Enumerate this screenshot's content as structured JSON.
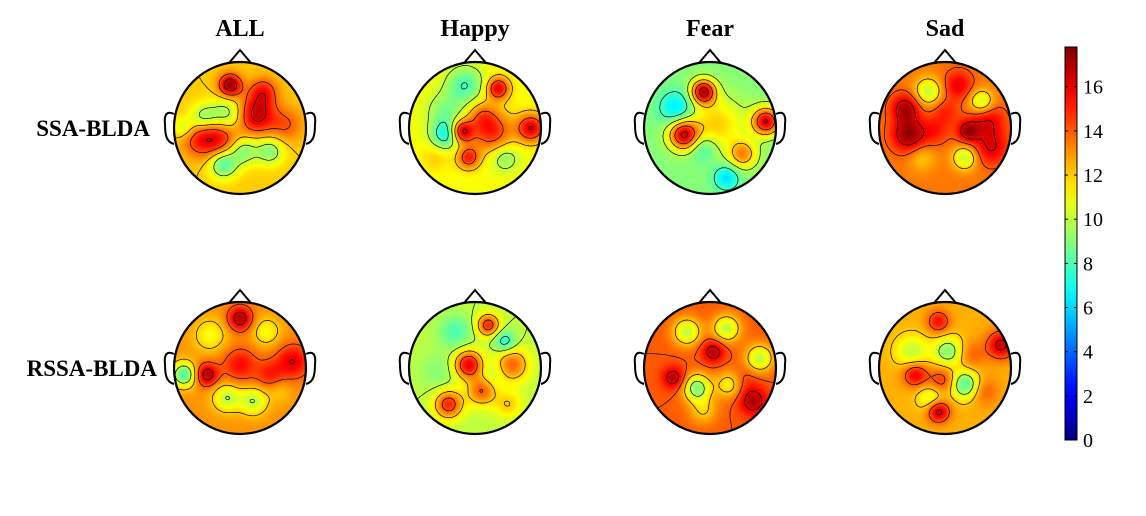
{
  "chart_data": {
    "type": "heatmap",
    "title": "",
    "columns": [
      "ALL",
      "Happy",
      "Fear",
      "Sad"
    ],
    "rows": [
      "SSA-BLDA",
      "RSSA-BLDA"
    ],
    "colorbar": {
      "min": 0,
      "max": 17.8,
      "ticks": [
        0,
        2,
        4,
        6,
        8,
        10,
        12,
        14,
        16
      ],
      "tick_labels": [
        "0",
        "2",
        "4",
        "6",
        "8",
        "10",
        "12",
        "14",
        "16"
      ],
      "colormap": "jet"
    },
    "topomaps": [
      {
        "row": "SSA-BLDA",
        "column": "ALL",
        "base": 12,
        "blobs": [
          {
            "cx": -0.15,
            "cy": -0.65,
            "v": 17.5,
            "r": 0.12
          },
          {
            "cx": 0.35,
            "cy": -0.55,
            "v": 15,
            "r": 0.15
          },
          {
            "cx": -0.55,
            "cy": -0.15,
            "v": 9,
            "r": 0.15
          },
          {
            "cx": -0.2,
            "cy": -0.2,
            "v": 9,
            "r": 0.18
          },
          {
            "cx": 0.25,
            "cy": -0.2,
            "v": 16.5,
            "r": 0.2
          },
          {
            "cx": -0.6,
            "cy": 0.15,
            "v": 15,
            "r": 0.2
          },
          {
            "cx": -0.3,
            "cy": 0.15,
            "v": 15,
            "r": 0.2
          },
          {
            "cx": 0.05,
            "cy": 0.35,
            "v": 9,
            "r": 0.15
          },
          {
            "cx": 0.45,
            "cy": 0.35,
            "v": 9,
            "r": 0.15
          },
          {
            "cx": -0.25,
            "cy": 0.55,
            "v": 8,
            "r": 0.15
          },
          {
            "cx": 0.7,
            "cy": -0.05,
            "v": 14,
            "r": 0.18
          },
          {
            "cx": -0.85,
            "cy": 0,
            "v": 10,
            "r": 0.12
          }
        ]
      },
      {
        "row": "SSA-BLDA",
        "column": "Happy",
        "base": 11,
        "blobs": [
          {
            "cx": -0.15,
            "cy": -0.65,
            "v": 8,
            "r": 0.2
          },
          {
            "cx": 0.35,
            "cy": -0.6,
            "v": 16,
            "r": 0.12
          },
          {
            "cx": -0.45,
            "cy": -0.25,
            "v": 9,
            "r": 0.2
          },
          {
            "cx": -0.45,
            "cy": 0.1,
            "v": 7,
            "r": 0.15
          },
          {
            "cx": -0.2,
            "cy": 0.05,
            "v": 16.5,
            "r": 0.12
          },
          {
            "cx": 0.25,
            "cy": 0.05,
            "v": 15,
            "r": 0.22
          },
          {
            "cx": 0.85,
            "cy": 0,
            "v": 16,
            "r": 0.15
          },
          {
            "cx": 0.1,
            "cy": -0.2,
            "v": 13,
            "r": 0.15
          },
          {
            "cx": -0.1,
            "cy": 0.45,
            "v": 15,
            "r": 0.12
          },
          {
            "cx": 0.45,
            "cy": 0.45,
            "v": 9,
            "r": 0.15
          },
          {
            "cx": -0.6,
            "cy": 0.45,
            "v": 12,
            "r": 0.15
          }
        ]
      },
      {
        "row": "SSA-BLDA",
        "column": "Fear",
        "base": 9,
        "blobs": [
          {
            "cx": -0.5,
            "cy": -0.3,
            "v": 6,
            "r": 0.18
          },
          {
            "cx": -0.1,
            "cy": -0.55,
            "v": 16.5,
            "r": 0.13
          },
          {
            "cx": 0.2,
            "cy": -0.65,
            "v": 9,
            "r": 0.15
          },
          {
            "cx": 0.85,
            "cy": -0.1,
            "v": 16,
            "r": 0.15
          },
          {
            "cx": -0.4,
            "cy": 0.1,
            "v": 16,
            "r": 0.16
          },
          {
            "cx": 0.1,
            "cy": -0.05,
            "v": 12,
            "r": 0.3
          },
          {
            "cx": 0.5,
            "cy": 0.4,
            "v": 13,
            "r": 0.15
          },
          {
            "cx": -0.1,
            "cy": 0.3,
            "v": 7,
            "r": 0.15
          },
          {
            "cx": -0.2,
            "cy": 0.6,
            "v": 9,
            "r": 0.15
          },
          {
            "cx": 0.25,
            "cy": 0.75,
            "v": 6,
            "r": 0.13
          }
        ]
      },
      {
        "row": "SSA-BLDA",
        "column": "Sad",
        "base": 13.5,
        "blobs": [
          {
            "cx": -0.6,
            "cy": -0.3,
            "v": 17,
            "r": 0.15
          },
          {
            "cx": -0.25,
            "cy": -0.55,
            "v": 10,
            "r": 0.15
          },
          {
            "cx": 0.2,
            "cy": -0.65,
            "v": 16,
            "r": 0.15
          },
          {
            "cx": 0.55,
            "cy": -0.4,
            "v": 10,
            "r": 0.13
          },
          {
            "cx": 0.65,
            "cy": -0.1,
            "v": 16,
            "r": 0.18
          },
          {
            "cx": -0.55,
            "cy": 0.1,
            "v": 17.5,
            "r": 0.18
          },
          {
            "cx": -0.15,
            "cy": 0.05,
            "v": 15,
            "r": 0.15
          },
          {
            "cx": 0.35,
            "cy": 0.05,
            "v": 17,
            "r": 0.12
          },
          {
            "cx": 0.3,
            "cy": 0.45,
            "v": 10,
            "r": 0.13
          },
          {
            "cx": -0.35,
            "cy": 0.45,
            "v": 12,
            "r": 0.15
          },
          {
            "cx": 0.7,
            "cy": 0.3,
            "v": 16,
            "r": 0.18
          },
          {
            "cx": 0,
            "cy": -0.25,
            "v": 15,
            "r": 0.15
          }
        ]
      },
      {
        "row": "RSSA-BLDA",
        "column": "ALL",
        "base": 13,
        "blobs": [
          {
            "cx": 0,
            "cy": -0.75,
            "v": 17,
            "r": 0.13
          },
          {
            "cx": -0.45,
            "cy": -0.5,
            "v": 11,
            "r": 0.18
          },
          {
            "cx": 0.4,
            "cy": -0.55,
            "v": 11,
            "r": 0.15
          },
          {
            "cx": 0.8,
            "cy": -0.1,
            "v": 16,
            "r": 0.18
          },
          {
            "cx": -0.5,
            "cy": 0.1,
            "v": 17,
            "r": 0.12
          },
          {
            "cx": -0.85,
            "cy": 0.1,
            "v": 8,
            "r": 0.13
          },
          {
            "cx": 0,
            "cy": -0.05,
            "v": 15.5,
            "r": 0.18
          },
          {
            "cx": 0.45,
            "cy": 0.1,
            "v": 15,
            "r": 0.15
          },
          {
            "cx": -0.2,
            "cy": 0.45,
            "v": 10,
            "r": 0.15
          },
          {
            "cx": 0.2,
            "cy": 0.5,
            "v": 10,
            "r": 0.15
          },
          {
            "cx": 0.6,
            "cy": 0.35,
            "v": 12,
            "r": 0.13
          }
        ]
      },
      {
        "row": "RSSA-BLDA",
        "column": "Happy",
        "base": 10,
        "blobs": [
          {
            "cx": -0.3,
            "cy": -0.55,
            "v": 8,
            "r": 0.18
          },
          {
            "cx": 0.2,
            "cy": -0.65,
            "v": 15,
            "r": 0.12
          },
          {
            "cx": 0.45,
            "cy": -0.4,
            "v": 7,
            "r": 0.12
          },
          {
            "cx": -0.1,
            "cy": -0.05,
            "v": 16,
            "r": 0.15
          },
          {
            "cx": -0.55,
            "cy": 0.05,
            "v": 9,
            "r": 0.2
          },
          {
            "cx": 0.3,
            "cy": 0.05,
            "v": 9,
            "r": 0.15
          },
          {
            "cx": 0.55,
            "cy": -0.05,
            "v": 14,
            "r": 0.18
          },
          {
            "cx": -0.4,
            "cy": 0.55,
            "v": 15,
            "r": 0.15
          },
          {
            "cx": 0.1,
            "cy": 0.35,
            "v": 14,
            "r": 0.15
          },
          {
            "cx": 0.5,
            "cy": 0.55,
            "v": 12,
            "r": 0.15
          }
        ]
      },
      {
        "row": "RSSA-BLDA",
        "column": "Fear",
        "base": 14,
        "blobs": [
          {
            "cx": -0.35,
            "cy": -0.55,
            "v": 10,
            "r": 0.15
          },
          {
            "cx": 0.25,
            "cy": -0.6,
            "v": 10,
            "r": 0.15
          },
          {
            "cx": 0.05,
            "cy": -0.25,
            "v": 17,
            "r": 0.12
          },
          {
            "cx": 0.75,
            "cy": -0.15,
            "v": 10,
            "r": 0.15
          },
          {
            "cx": -0.55,
            "cy": 0.15,
            "v": 17,
            "r": 0.12
          },
          {
            "cx": -0.2,
            "cy": 0.3,
            "v": 9,
            "r": 0.15
          },
          {
            "cx": 0.3,
            "cy": 0.25,
            "v": 11,
            "r": 0.15
          },
          {
            "cx": 0.65,
            "cy": 0.5,
            "v": 17,
            "r": 0.15
          },
          {
            "cx": -0.1,
            "cy": 0.65,
            "v": 12,
            "r": 0.15
          },
          {
            "cx": 0.5,
            "cy": 0.2,
            "v": 15,
            "r": 0.15
          }
        ]
      },
      {
        "row": "RSSA-BLDA",
        "column": "Sad",
        "base": 12.5,
        "blobs": [
          {
            "cx": -0.1,
            "cy": -0.7,
            "v": 15.5,
            "r": 0.12
          },
          {
            "cx": 0.85,
            "cy": -0.35,
            "v": 16.5,
            "r": 0.15
          },
          {
            "cx": -0.5,
            "cy": -0.25,
            "v": 10,
            "r": 0.18
          },
          {
            "cx": 0.05,
            "cy": -0.25,
            "v": 9,
            "r": 0.16
          },
          {
            "cx": 0.4,
            "cy": -0.2,
            "v": 14,
            "r": 0.15
          },
          {
            "cx": -0.45,
            "cy": 0.1,
            "v": 16,
            "r": 0.13
          },
          {
            "cx": -0.05,
            "cy": 0.2,
            "v": 15,
            "r": 0.15
          },
          {
            "cx": 0.3,
            "cy": 0.25,
            "v": 8,
            "r": 0.15
          },
          {
            "cx": -0.2,
            "cy": 0.45,
            "v": 10,
            "r": 0.15
          },
          {
            "cx": -0.1,
            "cy": 0.65,
            "v": 17,
            "r": 0.12
          },
          {
            "cx": 0.6,
            "cy": 0.35,
            "v": 14,
            "r": 0.15
          }
        ]
      }
    ]
  }
}
